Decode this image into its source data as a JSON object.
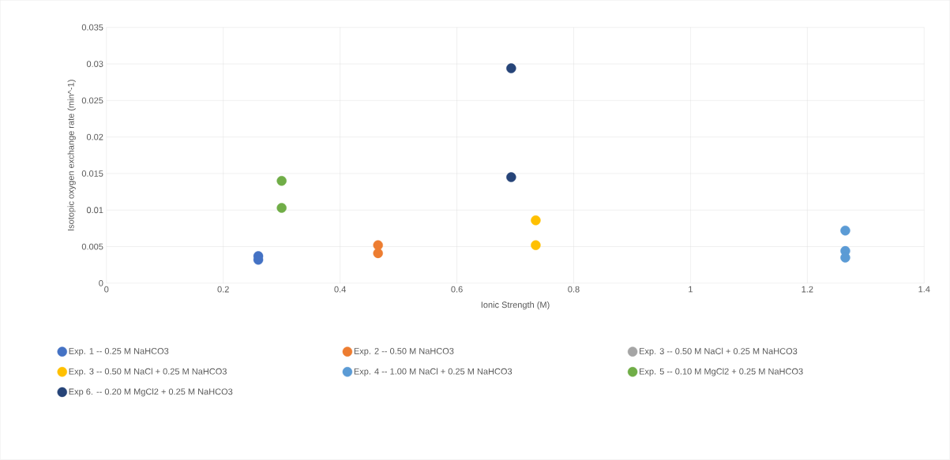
{
  "chart_data": {
    "type": "scatter",
    "xlabel": "Ionic Strength (M)",
    "ylabel": "Isotopic oxygen exchange rate (min^-1)",
    "xlim": [
      0,
      1.4
    ],
    "xticks": [
      0,
      0.2,
      0.4,
      0.6,
      0.8,
      1,
      1.2,
      1.4
    ],
    "ylim": [
      0,
      0.035
    ],
    "yticks": [
      0,
      0.005,
      0.01,
      0.015,
      0.02,
      0.025,
      0.03,
      0.035
    ],
    "grid": true,
    "legend": "bottom",
    "marker": "circle",
    "series": [
      {
        "name": "Exp. 1 -- 0.25 M NaHCO3",
        "color": "#4472c4",
        "x": [
          0.26,
          0.26
        ],
        "values": [
          0.0037,
          0.0032
        ]
      },
      {
        "name": "Exp. 2 -- 0.50 M NaHCO3",
        "color": "#ed7d31",
        "x": [
          0.465,
          0.465
        ],
        "values": [
          0.0052,
          0.0041
        ]
      },
      {
        "name": "Exp. 3 -- 0.50 M NaCl + 0.25 M NaHCO3",
        "color": "#a5a5a5"
      },
      {
        "name": "Exp. 3 -- 0.50 M NaCl + 0.25 M NaHCO3",
        "color": "#ffc000",
        "x": [
          0.735,
          0.735
        ],
        "values": [
          0.0086,
          0.0052
        ]
      },
      {
        "name": "Exp. 4 -- 1.00 M NaCl + 0.25 M NaHCO3",
        "color": "#5b9bd5",
        "x": [
          1.265,
          1.265,
          1.265
        ],
        "values": [
          0.0072,
          0.0044,
          0.0035
        ]
      },
      {
        "name": "Exp. 5 -- 0.10 M MgCl2 + 0.25 M NaHCO3",
        "color": "#70ad47",
        "x": [
          0.3,
          0.3
        ],
        "values": [
          0.014,
          0.0103
        ]
      },
      {
        "name": "Exp 6. -- 0.20 M MgCl2 + 0.25 M NaHCO3",
        "color": "#264478",
        "x": [
          0.693,
          0.693
        ],
        "values": [
          0.0294,
          0.0145
        ]
      }
    ]
  }
}
